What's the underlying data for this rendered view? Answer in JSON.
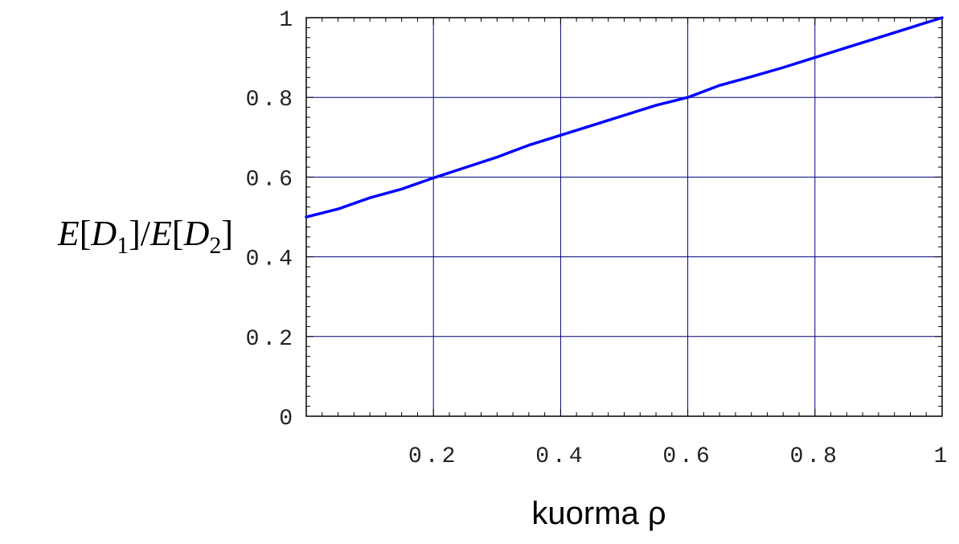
{
  "chart_data": {
    "type": "line",
    "title": "",
    "xlabel": "kuorma ρ",
    "ylabel": {
      "parts": [
        {
          "text": "E",
          "italic": true
        },
        {
          "text": "[",
          "italic": false
        },
        {
          "text": "D",
          "italic": true
        },
        {
          "text": "1",
          "sub": true
        },
        {
          "text": "]/",
          "italic": false
        },
        {
          "text": "E",
          "italic": true
        },
        {
          "text": "[",
          "italic": false
        },
        {
          "text": "D",
          "italic": true
        },
        {
          "text": "2",
          "sub": true
        },
        {
          "text": "]",
          "italic": false
        }
      ]
    },
    "xlim": [
      0,
      1
    ],
    "ylim": [
      0,
      1
    ],
    "x_ticks": [
      0.2,
      0.4,
      0.6,
      0.8,
      1
    ],
    "x_tick_labels": [
      "0.2",
      "0.4",
      "0.6",
      "0.8",
      "1"
    ],
    "y_ticks": [
      0,
      0.2,
      0.4,
      0.6,
      0.8,
      1
    ],
    "y_tick_labels": [
      "0",
      "0.2",
      "0.4",
      "0.6",
      "0.8",
      "1"
    ],
    "grid": true,
    "colors": {
      "line": "#0000ff",
      "grid": "#00007f",
      "frame": "#000000"
    },
    "series": [
      {
        "x": [
          0,
          0.05,
          0.1,
          0.15,
          0.2,
          0.25,
          0.3,
          0.35,
          0.4,
          0.45,
          0.5,
          0.55,
          0.6,
          0.65,
          0.7,
          0.75,
          0.8,
          0.85,
          0.9,
          0.95,
          1
        ],
        "values": [
          0.5,
          0.52,
          0.548,
          0.57,
          0.598,
          0.624,
          0.65,
          0.68,
          0.705,
          0.73,
          0.755,
          0.78,
          0.8,
          0.83,
          0.852,
          0.875,
          0.9,
          0.925,
          0.95,
          0.975,
          1.0
        ]
      }
    ]
  }
}
